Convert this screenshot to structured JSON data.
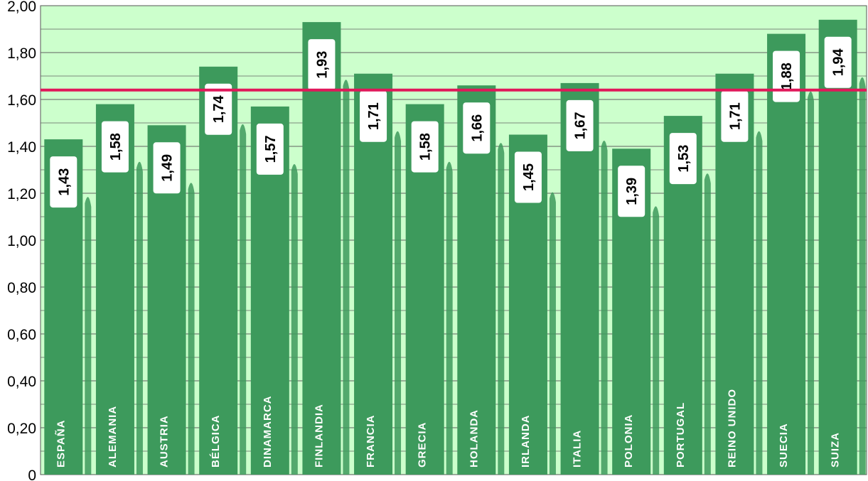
{
  "colors": {
    "plot_background": "#ccffcc",
    "bar": "#3d9a5c",
    "reference_line": "#e0185a",
    "label_box": "#ffffff",
    "category_text": "#ffffff"
  },
  "chart_data": {
    "type": "bar",
    "categories": [
      "ESPAÑA",
      "ALEMANIA",
      "AUSTRIA",
      "BÉLGICA",
      "DINAMARCA",
      "FINLANDIA",
      "FRANCIA",
      "GRECIA",
      "HOLANDA",
      "IRLANDA",
      "ITALIA",
      "POLONIA",
      "PORTUGAL",
      "REINO UNIDO",
      "SUECIA",
      "SUIZA"
    ],
    "values": [
      1.43,
      1.58,
      1.49,
      1.74,
      1.57,
      1.93,
      1.71,
      1.58,
      1.66,
      1.45,
      1.67,
      1.39,
      1.53,
      1.71,
      1.88,
      1.94
    ],
    "value_labels": [
      "1,43",
      "1,58",
      "1,49",
      "1,74",
      "1,57",
      "1,93",
      "1,71",
      "1,58",
      "1,66",
      "1,45",
      "1,67",
      "1,39",
      "1,53",
      "1,71",
      "1,88",
      "1,94"
    ],
    "reference_line": 1.64,
    "ylim": [
      0,
      2.0
    ],
    "yticks": [
      {
        "value": 0,
        "label": "0"
      },
      {
        "value": 0.2,
        "label": "0,20"
      },
      {
        "value": 0.4,
        "label": "0,40"
      },
      {
        "value": 0.6,
        "label": "0,60"
      },
      {
        "value": 0.8,
        "label": "0,80"
      },
      {
        "value": 1.0,
        "label": "1,00"
      },
      {
        "value": 1.2,
        "label": "1,20"
      },
      {
        "value": 1.4,
        "label": "1,40"
      },
      {
        "value": 1.6,
        "label": "1,60"
      },
      {
        "value": 1.8,
        "label": "1,80"
      },
      {
        "value": 2.0,
        "label": "2,00"
      }
    ],
    "grid": true,
    "legend": "none",
    "title": "",
    "xlabel": "",
    "ylabel": ""
  }
}
